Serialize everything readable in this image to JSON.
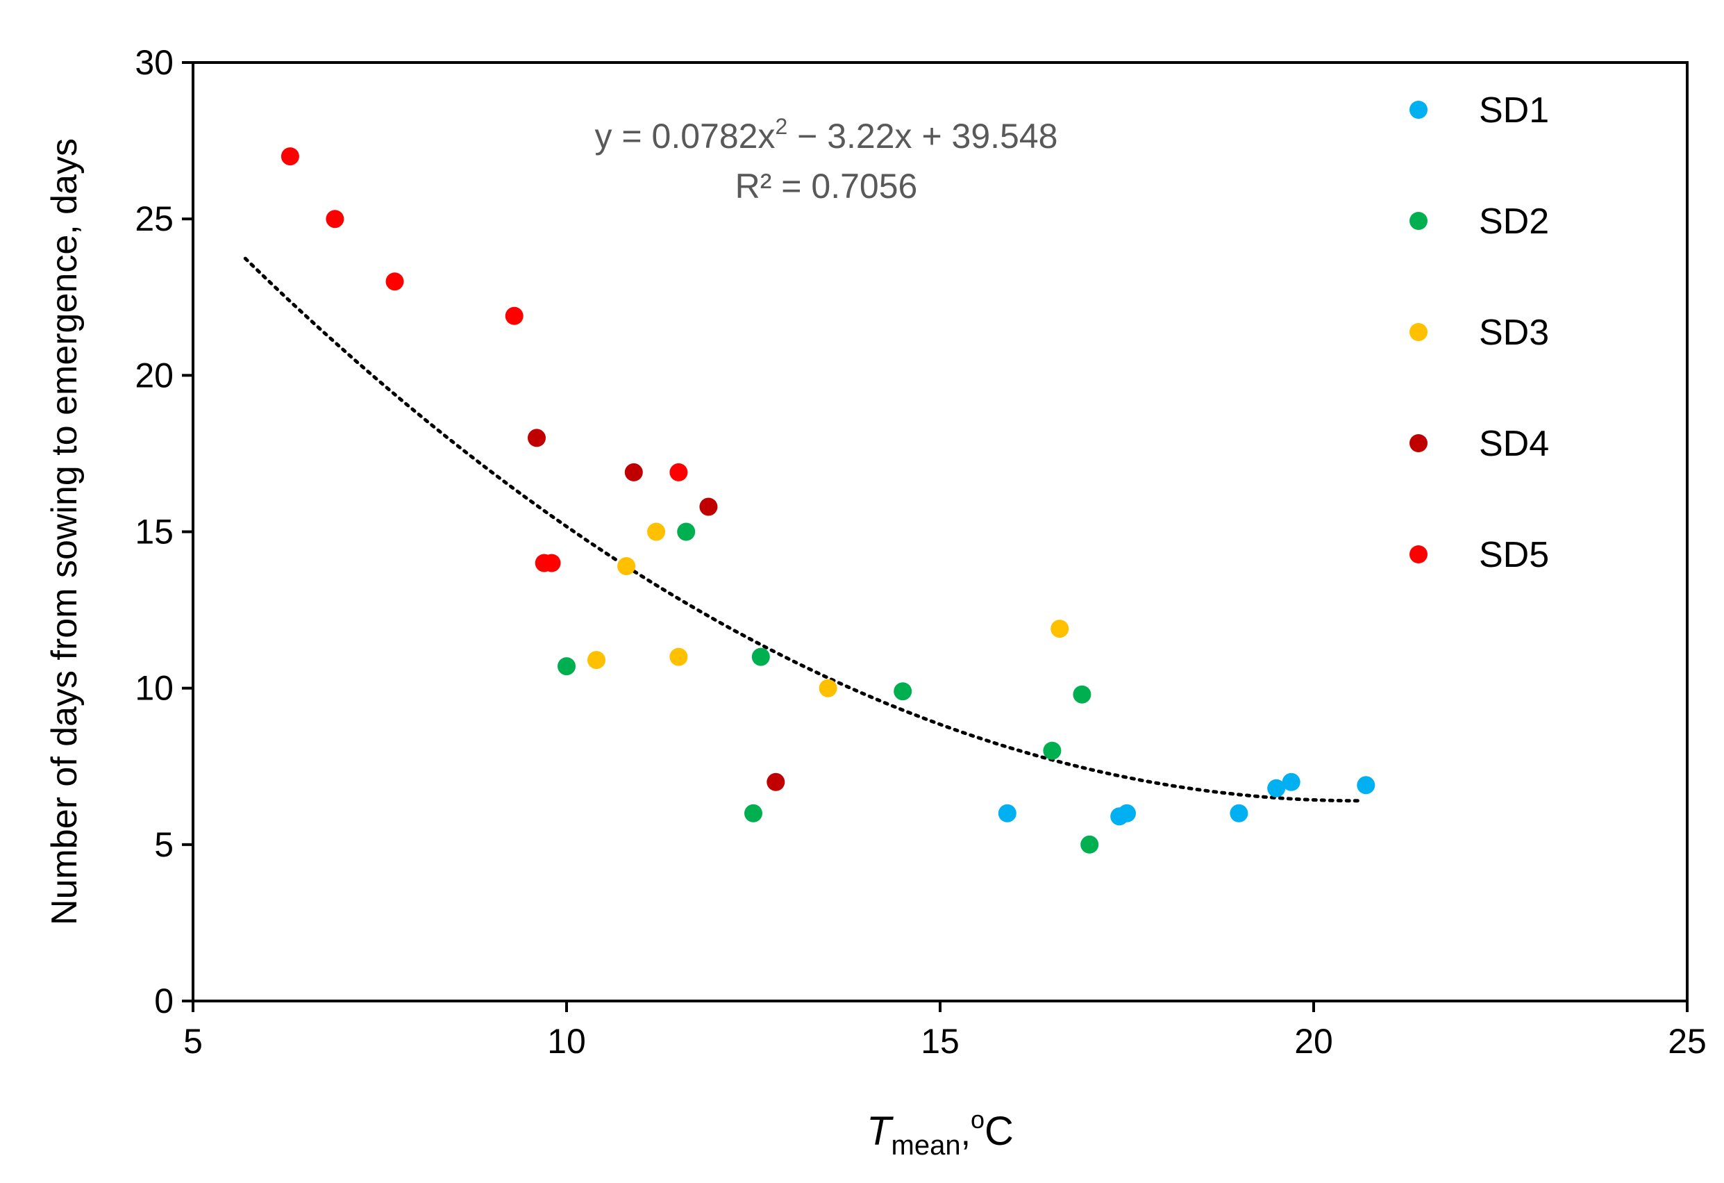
{
  "chart_data": {
    "type": "scatter",
    "title": "",
    "xlabel": {
      "italic": "T",
      "subscript": "mean",
      "suffix_sep": ",",
      "super": "o",
      "unit": "C"
    },
    "ylabel": "Number of days from sowing to emergence,  days",
    "xlim": [
      5,
      25
    ],
    "ylim": [
      0,
      30
    ],
    "x_ticks": [
      5,
      10,
      15,
      20,
      25
    ],
    "y_ticks": [
      0,
      5,
      10,
      15,
      20,
      25,
      30
    ],
    "grid": false,
    "legend_position": "right",
    "series": [
      {
        "name": "SD1",
        "color": "#00b0f0",
        "points": [
          [
            15.9,
            6.0
          ],
          [
            17.4,
            5.9
          ],
          [
            17.5,
            6.0
          ],
          [
            19.0,
            6.0
          ],
          [
            19.5,
            6.8
          ],
          [
            19.7,
            7.0
          ],
          [
            20.7,
            6.9
          ]
        ]
      },
      {
        "name": "SD2",
        "color": "#00b050",
        "points": [
          [
            10.0,
            10.7
          ],
          [
            11.6,
            15.0
          ],
          [
            12.6,
            11.0
          ],
          [
            12.5,
            6.0
          ],
          [
            14.5,
            9.9
          ],
          [
            16.5,
            8.0
          ],
          [
            16.9,
            9.8
          ],
          [
            17.0,
            5.0
          ]
        ]
      },
      {
        "name": "SD3",
        "color": "#ffc000",
        "points": [
          [
            10.4,
            10.9
          ],
          [
            10.8,
            13.9
          ],
          [
            11.2,
            15.0
          ],
          [
            11.5,
            11.0
          ],
          [
            13.5,
            10.0
          ],
          [
            16.6,
            11.9
          ]
        ]
      },
      {
        "name": "SD4",
        "color": "#c00000",
        "points": [
          [
            9.6,
            18.0
          ],
          [
            10.9,
            16.9
          ],
          [
            11.9,
            15.8
          ],
          [
            12.8,
            7.0
          ]
        ]
      },
      {
        "name": "SD5",
        "color": "#ff0000",
        "points": [
          [
            6.3,
            27.0
          ],
          [
            6.9,
            25.0
          ],
          [
            7.7,
            23.0
          ],
          [
            9.3,
            21.9
          ],
          [
            9.7,
            14.0
          ],
          [
            9.8,
            14.0
          ],
          [
            11.5,
            16.9
          ]
        ]
      }
    ],
    "trendline": {
      "type": "polynomial",
      "order": 2,
      "coefficients": [
        0.0782,
        -3.22,
        39.548
      ],
      "x_range": [
        5.7,
        20.6
      ],
      "style": "dotted",
      "equation_parts": {
        "prefix": "y = 0.0782x",
        "power": "2",
        "suffix": "  − 3.22x  + 39.548"
      },
      "r_squared": "R² = 0.7056"
    }
  }
}
